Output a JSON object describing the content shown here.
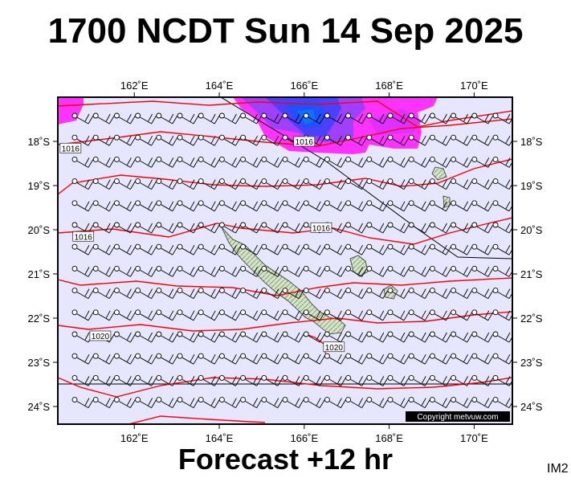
{
  "header": {
    "title": "1700 NCDT Sun 14 Sep 2025"
  },
  "footer": {
    "label": "Forecast +12 hr",
    "code": "IM2"
  },
  "copyright": "Copyright metvuw.com",
  "map": {
    "lon_range": [
      160.2,
      170.9
    ],
    "lat_range": [
      -17.0,
      -24.4
    ],
    "lon_ticks": [
      {
        "value": 162,
        "label": "162˚E"
      },
      {
        "value": 164,
        "label": "164˚E"
      },
      {
        "value": 166,
        "label": "166˚E"
      },
      {
        "value": 168,
        "label": "168˚E"
      },
      {
        "value": 170,
        "label": "170˚E"
      }
    ],
    "lat_ticks": [
      {
        "value": -18,
        "label": "18˚S"
      },
      {
        "value": -19,
        "label": "19˚S"
      },
      {
        "value": -20,
        "label": "20˚S"
      },
      {
        "value": -21,
        "label": "21˚S"
      },
      {
        "value": -22,
        "label": "22˚S"
      },
      {
        "value": -23,
        "label": "23˚S"
      },
      {
        "value": -24,
        "label": "24˚S"
      }
    ],
    "isobar_labels": [
      {
        "text": "1016",
        "lon": 160.5,
        "lat": -18.15
      },
      {
        "text": "1016",
        "lon": 166.0,
        "lat": -18.0
      },
      {
        "text": "1016",
        "lon": 166.4,
        "lat": -19.95
      },
      {
        "text": "1016",
        "lon": 160.8,
        "lat": -20.15
      },
      {
        "text": "1020",
        "lon": 161.2,
        "lat": -22.4
      },
      {
        "text": "1020",
        "lon": 166.7,
        "lat": -22.65
      }
    ],
    "colors": {
      "background": "#e6e6ff",
      "isobar": "#ff0000",
      "rain_light": "#ff33ff",
      "rain_medium": "#9933ff",
      "rain_heavy": "#3333ff",
      "land": "#c8d8b8"
    }
  }
}
